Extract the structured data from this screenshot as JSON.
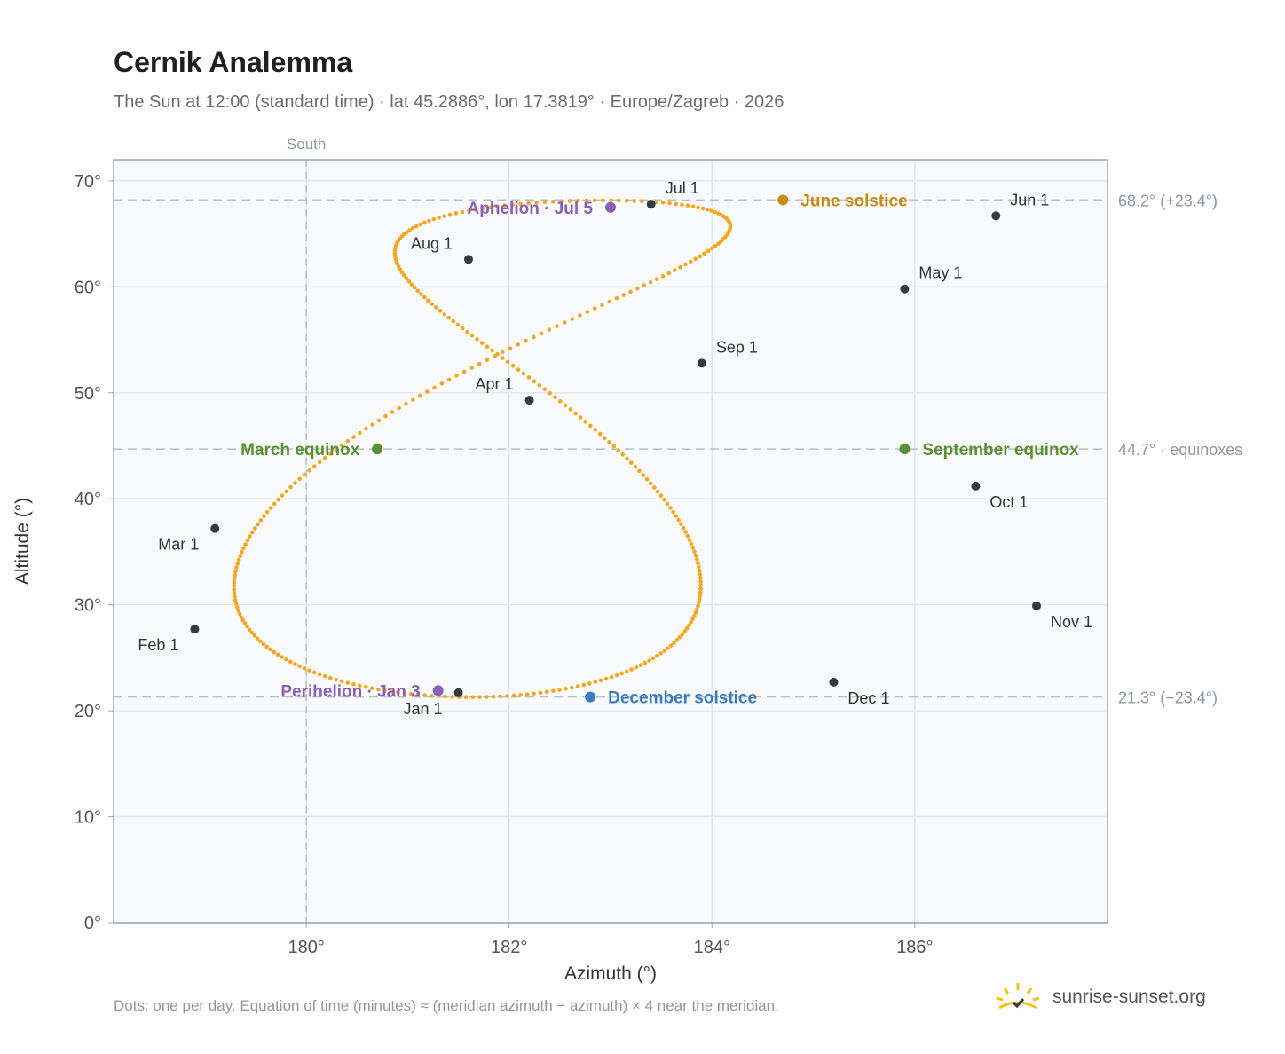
{
  "header": {
    "title": "Cernik Analemma",
    "subtitle": "The Sun at 12:00 (standard time) · lat 45.2886°, lon 17.3819° · Europe/Zagreb · 2026"
  },
  "footer": {
    "note": "Dots: one per day. Equation of time (minutes) ≈ (meridian azimuth − azimuth) × 4 near the meridian.",
    "brand": "sunrise-sunset.org",
    "brand_icon": "sunrise-logo-icon"
  },
  "colors": {
    "path": "#f5a623",
    "month_marker": "#333a42",
    "equinox": "#5a8f32",
    "june_solstice": "#c98a0e",
    "december_solstice": "#3a7bbf",
    "apsis": "#8a5fb5",
    "grid": "#e3e7ec",
    "reference_line": "#b5c0c9",
    "plot_background": "#f8fafc",
    "plot_border": "#9aa5b1"
  },
  "chart_data": {
    "type": "scatter",
    "xlabel": "Azimuth (°)",
    "ylabel": "Altitude (°)",
    "xlim": [
      178.1,
      187.9
    ],
    "ylim": [
      0,
      72
    ],
    "x_ticks": [
      180,
      182,
      184,
      186
    ],
    "x_tick_labels": [
      "180°",
      "182°",
      "184°",
      "186°"
    ],
    "y_ticks": [
      0,
      10,
      20,
      30,
      40,
      50,
      60,
      70
    ],
    "y_tick_labels": [
      "0°",
      "10°",
      "20°",
      "30°",
      "40°",
      "50°",
      "60°",
      "70°"
    ],
    "grid": true,
    "meridian": {
      "azimuth": 180,
      "label": "South"
    },
    "reference_lines": [
      {
        "altitude": 68.2,
        "label": "68.2° (+23.4°)"
      },
      {
        "altitude": 44.7,
        "label": "44.7° · equinoxes"
      },
      {
        "altitude": 21.3,
        "label": "21.3° (−23.4°)"
      }
    ],
    "month_markers": [
      {
        "label": "Jan 1",
        "azimuth": 181.5,
        "altitude": 21.7
      },
      {
        "label": "Feb 1",
        "azimuth": 178.9,
        "altitude": 27.7
      },
      {
        "label": "Mar 1",
        "azimuth": 179.1,
        "altitude": 37.2
      },
      {
        "label": "Apr 1",
        "azimuth": 182.2,
        "altitude": 49.3
      },
      {
        "label": "May 1",
        "azimuth": 185.9,
        "altitude": 59.8
      },
      {
        "label": "Jun 1",
        "azimuth": 186.8,
        "altitude": 66.7
      },
      {
        "label": "Jul 1",
        "azimuth": 183.4,
        "altitude": 67.8
      },
      {
        "label": "Aug 1",
        "azimuth": 181.6,
        "altitude": 62.6
      },
      {
        "label": "Sep 1",
        "azimuth": 183.9,
        "altitude": 52.8
      },
      {
        "label": "Oct 1",
        "azimuth": 186.6,
        "altitude": 41.2
      },
      {
        "label": "Nov 1",
        "azimuth": 187.2,
        "altitude": 29.9
      },
      {
        "label": "Dec 1",
        "azimuth": 185.2,
        "altitude": 22.7
      }
    ],
    "events": [
      {
        "label": "March equinox",
        "azimuth": 180.7,
        "altitude": 44.7,
        "kind": "equinox"
      },
      {
        "label": "June solstice",
        "azimuth": 184.7,
        "altitude": 68.2,
        "kind": "june_solstice"
      },
      {
        "label": "September equinox",
        "azimuth": 185.9,
        "altitude": 44.7,
        "kind": "equinox"
      },
      {
        "label": "December solstice",
        "azimuth": 182.8,
        "altitude": 21.3,
        "kind": "december_solstice"
      },
      {
        "label": "Perihelion · Jan 3",
        "azimuth": 181.3,
        "altitude": 21.9,
        "kind": "apsis"
      },
      {
        "label": "Aphelion · Jul 5",
        "azimuth": 183.0,
        "altitude": 67.5,
        "kind": "apsis"
      }
    ],
    "daily_points": "one dot per day of 2026 (365 points) along the figure-eight curve"
  }
}
